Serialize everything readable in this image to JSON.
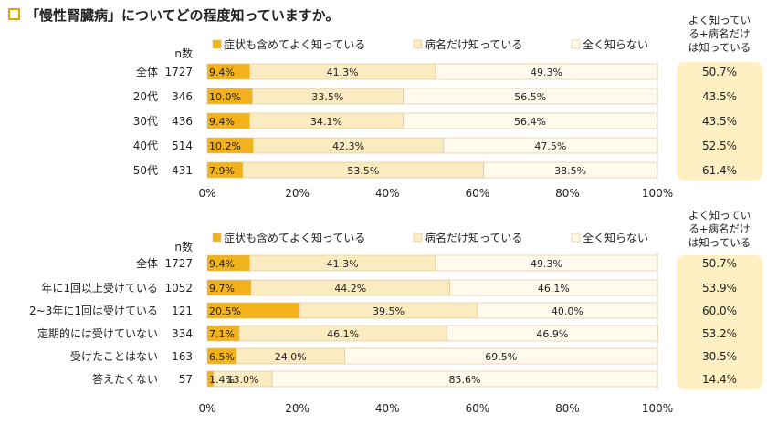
{
  "title_marker_color": "#E8A200",
  "colors": {
    "seg1": "#F2B21B",
    "seg2": "#FBEBC1",
    "seg3": "#FFFAEC",
    "side_bg": "#FFF0C4",
    "edge": "#D9C28A"
  },
  "chart_data": [
    {
      "type": "bar",
      "orientation": "horizontal",
      "stacked": true,
      "title": "「慢性腎臓病」についてどの程度知っていますか。",
      "n_label": "n数",
      "legend": [
        "症状も含めてよく知っている",
        "病名だけ知っている",
        "全く知らない"
      ],
      "side_header": [
        "よく知ってい",
        "る+病名だけ",
        "は知っている"
      ],
      "categories": [
        "全体",
        "20代",
        "30代",
        "40代",
        "50代"
      ],
      "n": [
        1727,
        346,
        436,
        514,
        431
      ],
      "series": [
        {
          "name": "症状も含めてよく知っている",
          "values": [
            9.4,
            10.0,
            9.4,
            10.2,
            7.9
          ]
        },
        {
          "name": "病名だけ知っている",
          "values": [
            41.3,
            33.5,
            34.1,
            42.3,
            53.5
          ]
        },
        {
          "name": "全く知らない",
          "values": [
            49.3,
            56.5,
            56.4,
            47.5,
            38.5
          ]
        }
      ],
      "side_values": [
        "50.7%",
        "43.5%",
        "43.5%",
        "52.5%",
        "61.4%"
      ],
      "xticks": [
        "0%",
        "20%",
        "40%",
        "60%",
        "80%",
        "100%"
      ],
      "xlim": [
        0,
        100
      ]
    },
    {
      "type": "bar",
      "orientation": "horizontal",
      "stacked": true,
      "n_label": "n数",
      "legend": [
        "症状も含めてよく知っている",
        "病名だけ知っている",
        "全く知らない"
      ],
      "side_header": [
        "よく知ってい",
        "る+病名だけ",
        "は知っている"
      ],
      "categories": [
        "全体",
        "年に1回以上受けている",
        "2~3年に1回は受けている",
        "定期的には受けていない",
        "受けたことはない",
        "答えたくない"
      ],
      "n": [
        1727,
        1052,
        121,
        334,
        163,
        57
      ],
      "series": [
        {
          "name": "症状も含めてよく知っている",
          "values": [
            9.4,
            9.7,
            20.5,
            7.1,
            6.5,
            1.4
          ]
        },
        {
          "name": "病名だけ知っている",
          "values": [
            41.3,
            44.2,
            39.5,
            46.1,
            24.0,
            13.0
          ]
        },
        {
          "name": "全く知らない",
          "values": [
            49.3,
            46.1,
            40.0,
            46.9,
            69.5,
            85.6
          ]
        }
      ],
      "side_values": [
        "50.7%",
        "53.9%",
        "60.0%",
        "53.2%",
        "30.5%",
        "14.4%"
      ],
      "xticks": [
        "0%",
        "20%",
        "40%",
        "60%",
        "80%",
        "100%"
      ],
      "xlim": [
        0,
        100
      ]
    }
  ]
}
